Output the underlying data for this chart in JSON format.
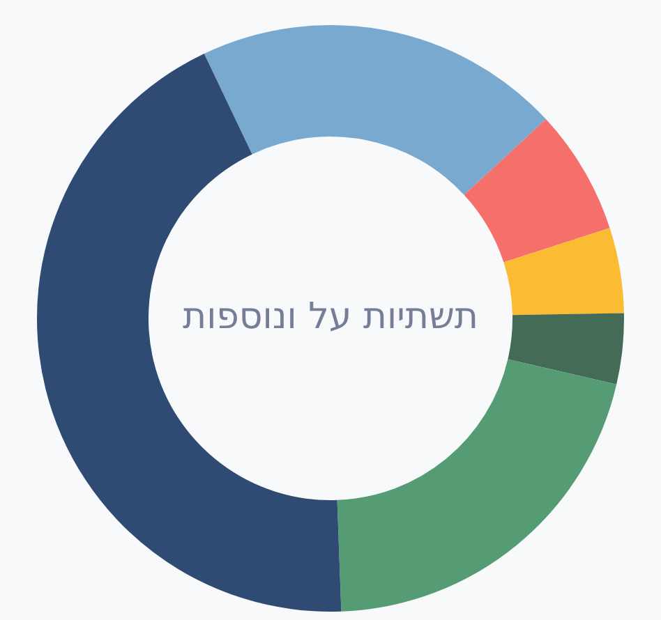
{
  "chart_data": {
    "type": "donut",
    "title": "תשתיות על ונוספות",
    "categories": [
      null,
      null,
      null,
      null,
      null,
      null
    ],
    "values": [
      20.2,
      6.9,
      4.7,
      3.9,
      20.8,
      43.5
    ],
    "colors": [
      "#7aa9cf",
      "#f5706b",
      "#fbbb33",
      "#436b55",
      "#559b74",
      "#2f4b73"
    ],
    "legend": false
  }
}
